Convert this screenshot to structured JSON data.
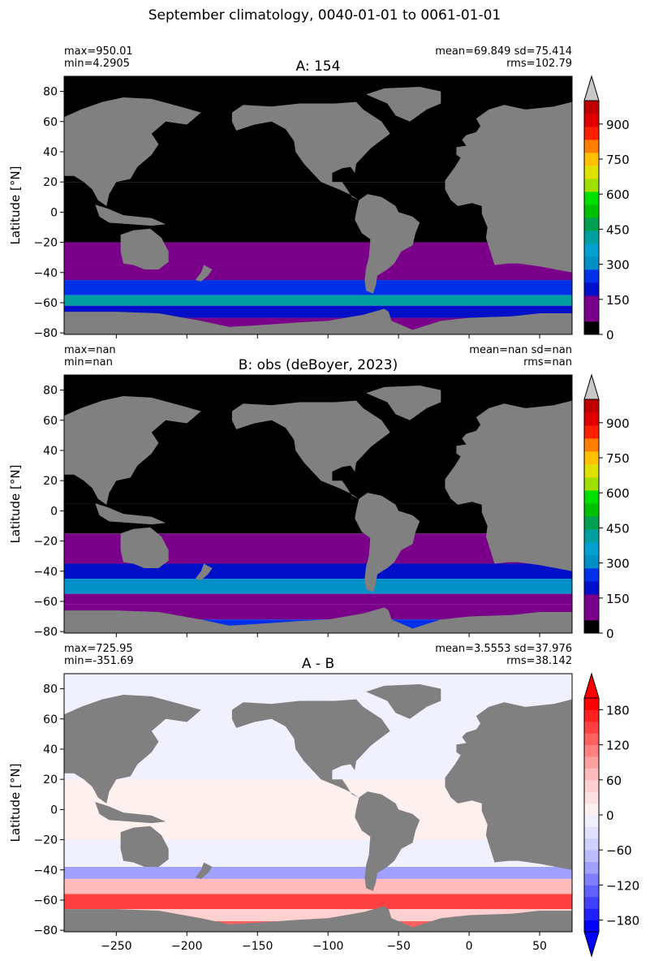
{
  "figure": {
    "suptitle": "September climatology, 0040-01-01 to 0061-01-01"
  },
  "colors": {
    "land": "#808080",
    "frame": "#000000",
    "over": "#c8c8c8"
  },
  "chart_data": [
    {
      "type": "heatmap",
      "title": "A: 154",
      "ylabel": "Latitude [°N]",
      "xlabel": "",
      "xlim": [
        -287,
        73
      ],
      "ylim": [
        -81,
        90
      ],
      "yticks": [
        -80,
        -60,
        -40,
        -20,
        0,
        20,
        40,
        60,
        80
      ],
      "xticks": [
        -250,
        -200,
        -150,
        -100,
        -50,
        0,
        50
      ],
      "show_xticklabels": false,
      "stats_left": [
        "max=950.01",
        "min=4.2905"
      ],
      "stats_right": [
        "mean=69.849 sd=75.414",
        "rms=102.79"
      ],
      "colorbar": {
        "min": 0,
        "max": 1000,
        "extend": "max",
        "ticks": [
          0,
          150,
          300,
          450,
          600,
          750,
          900
        ],
        "colors": [
          "#000000",
          "#7a0089",
          "#7a0089",
          "#0010c8",
          "#0030e8",
          "#0090c8",
          "#00a0d0",
          "#00a0a0",
          "#00a050",
          "#00c000",
          "#00e000",
          "#a0e000",
          "#e0e000",
          "#ffc000",
          "#ff8000",
          "#ff2000",
          "#e00000",
          "#c00000",
          "#c8c8c8"
        ]
      },
      "ocean_bands": [
        {
          "lat": [
            20,
            90
          ],
          "value": 5
        },
        {
          "lat": [
            -20,
            20
          ],
          "value": 20
        },
        {
          "lat": [
            -35,
            -20
          ],
          "value": 90
        },
        {
          "lat": [
            -45,
            -35
          ],
          "value": 130
        },
        {
          "lat": [
            -55,
            -45
          ],
          "value": 260
        },
        {
          "lat": [
            -62,
            -55
          ],
          "value": 400
        },
        {
          "lat": [
            -70,
            -62
          ],
          "value": 220
        },
        {
          "lat": [
            -78,
            -70
          ],
          "value": 90
        }
      ]
    },
    {
      "type": "heatmap",
      "title": "B: obs (deBoyer, 2023)",
      "ylabel": "Latitude [°N]",
      "xlabel": "",
      "xlim": [
        -287,
        73
      ],
      "ylim": [
        -81,
        90
      ],
      "yticks": [
        -80,
        -60,
        -40,
        -20,
        0,
        20,
        40,
        60,
        80
      ],
      "xticks": [
        -250,
        -200,
        -150,
        -100,
        -50,
        0,
        50
      ],
      "show_xticklabels": false,
      "stats_left": [
        "max=nan",
        "min=nan"
      ],
      "stats_right": [
        "mean=nan sd=nan",
        "rms=nan"
      ],
      "colorbar": {
        "min": 0,
        "max": 1000,
        "extend": "max",
        "ticks": [
          0,
          150,
          300,
          450,
          600,
          750,
          900
        ],
        "colors": [
          "#000000",
          "#7a0089",
          "#7a0089",
          "#0010c8",
          "#0030e8",
          "#0090c8",
          "#00a0d0",
          "#00a0a0",
          "#00a050",
          "#00c000",
          "#00e000",
          "#a0e000",
          "#e0e000",
          "#ffc000",
          "#ff8000",
          "#ff2000",
          "#e00000",
          "#c00000",
          "#c8c8c8"
        ]
      },
      "ocean_bands": [
        {
          "lat": [
            5,
            90
          ],
          "value": 5
        },
        {
          "lat": [
            -15,
            5
          ],
          "value": 40
        },
        {
          "lat": [
            -35,
            -15
          ],
          "value": 100
        },
        {
          "lat": [
            -45,
            -35
          ],
          "value": 180
        },
        {
          "lat": [
            -55,
            -45
          ],
          "value": 320
        },
        {
          "lat": [
            -62,
            -55
          ],
          "value": 150
        },
        {
          "lat": [
            -72,
            -62
          ],
          "value": 90
        },
        {
          "lat": [
            -78,
            -72
          ],
          "value": 250
        }
      ]
    },
    {
      "type": "heatmap",
      "title": "A - B",
      "ylabel": "Latitude [°N]",
      "xlabel": "",
      "xlim": [
        -287,
        73
      ],
      "ylim": [
        -81,
        90
      ],
      "yticks": [
        -80,
        -60,
        -40,
        -20,
        0,
        20,
        40,
        60,
        80
      ],
      "xticks": [
        -250,
        -200,
        -150,
        -100,
        -50,
        0,
        50
      ],
      "show_xticklabels": true,
      "stats_left": [
        "max=725.95",
        "min=-351.69"
      ],
      "stats_right": [
        "mean=3.5553 sd=37.976",
        "rms=38.142"
      ],
      "colorbar": {
        "min": -200,
        "max": 200,
        "extend": "both",
        "ticks": [
          -180,
          -120,
          -60,
          0,
          60,
          120,
          180
        ],
        "colors": [
          "#0000ff",
          "#2020ff",
          "#4040ff",
          "#6060ff",
          "#8080ff",
          "#a0a0ff",
          "#bbbbff",
          "#d0d0ff",
          "#e0e0ff",
          "#f0f0ff",
          "#fff0f0",
          "#ffe0e0",
          "#ffd0d0",
          "#ffbbbb",
          "#ffa0a0",
          "#ff8080",
          "#ff6060",
          "#ff4040",
          "#ff2020",
          "#ff0000"
        ],
        "under": "#0000ff",
        "over": "#ff0000"
      },
      "ocean_bands": [
        {
          "lat": [
            20,
            90
          ],
          "value": -5
        },
        {
          "lat": [
            -20,
            20
          ],
          "value": 5
        },
        {
          "lat": [
            -38,
            -20
          ],
          "value": -15
        },
        {
          "lat": [
            -46,
            -38
          ],
          "value": -100
        },
        {
          "lat": [
            -56,
            -46
          ],
          "value": 70
        },
        {
          "lat": [
            -66,
            -56
          ],
          "value": 150
        },
        {
          "lat": [
            -74,
            -66
          ],
          "value": 40
        },
        {
          "lat": [
            -80,
            -74
          ],
          "value": 120
        }
      ]
    }
  ]
}
